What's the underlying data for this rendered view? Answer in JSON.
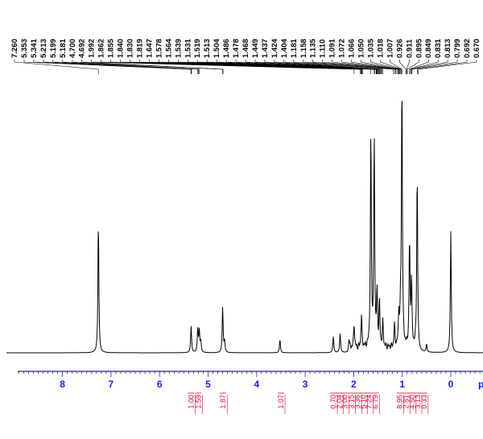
{
  "chart_data": {
    "type": "line",
    "title": "",
    "xlabel": "p",
    "ylabel": "",
    "xlim": [
      8.9,
      -0.6
    ],
    "x_reversed": true,
    "x_ticks": [
      "8",
      "7",
      "6",
      "5",
      "4",
      "3",
      "2",
      "1",
      "0"
    ],
    "peak_labels": [
      {
        "label": "7.260",
        "x": 7.26
      },
      {
        "label": "5.353",
        "x": 5.353
      },
      {
        "label": "5.341",
        "x": 5.341
      },
      {
        "label": "5.213",
        "x": 5.213
      },
      {
        "label": "5.199",
        "x": 5.199
      },
      {
        "label": "5.181",
        "x": 5.181
      },
      {
        "label": "4.700",
        "x": 4.7
      },
      {
        "label": "4.692",
        "x": 4.692
      },
      {
        "label": "1.992",
        "x": 1.992
      },
      {
        "label": "1.862",
        "x": 1.862
      },
      {
        "label": "1.855",
        "x": 1.855
      },
      {
        "label": "1.840",
        "x": 1.84
      },
      {
        "label": "1.830",
        "x": 1.83
      },
      {
        "label": "1.819",
        "x": 1.819
      },
      {
        "label": "1.647",
        "x": 1.647
      },
      {
        "label": "1.578",
        "x": 1.578
      },
      {
        "label": "1.564",
        "x": 1.564
      },
      {
        "label": "1.539",
        "x": 1.539
      },
      {
        "label": "1.531",
        "x": 1.531
      },
      {
        "label": "1.519",
        "x": 1.519
      },
      {
        "label": "1.513",
        "x": 1.513
      },
      {
        "label": "1.504",
        "x": 1.504
      },
      {
        "label": "1.486",
        "x": 1.486
      },
      {
        "label": "1.478",
        "x": 1.478
      },
      {
        "label": "1.468",
        "x": 1.468
      },
      {
        "label": "1.449",
        "x": 1.449
      },
      {
        "label": "1.437",
        "x": 1.437
      },
      {
        "label": "1.424",
        "x": 1.424
      },
      {
        "label": "1.404",
        "x": 1.404
      },
      {
        "label": "1.181",
        "x": 1.181
      },
      {
        "label": "1.158",
        "x": 1.158
      },
      {
        "label": "1.135",
        "x": 1.135
      },
      {
        "label": "1.110",
        "x": 1.11
      },
      {
        "label": "1.091",
        "x": 1.091
      },
      {
        "label": "1.072",
        "x": 1.072
      },
      {
        "label": "1.066",
        "x": 1.066
      },
      {
        "label": "1.050",
        "x": 1.05
      },
      {
        "label": "1.035",
        "x": 1.035
      },
      {
        "label": "1.018",
        "x": 1.018
      },
      {
        "label": "1.007",
        "x": 1.007
      },
      {
        "label": "0.926",
        "x": 0.926
      },
      {
        "label": "0.911",
        "x": 0.911
      },
      {
        "label": "0.895",
        "x": 0.895
      },
      {
        "label": "0.849",
        "x": 0.849
      },
      {
        "label": "0.831",
        "x": 0.831
      },
      {
        "label": "0.813",
        "x": 0.813
      },
      {
        "label": "0.799",
        "x": 0.799
      },
      {
        "label": "0.692",
        "x": 0.692
      },
      {
        "label": "0.670",
        "x": 0.67
      }
    ],
    "integrals": [
      {
        "label": "1.00",
        "x": 5.35
      },
      {
        "label": "1.59",
        "x": 5.2
      },
      {
        "label": "1.87",
        "x": 4.69
      },
      {
        "label": "1.07",
        "x": 3.5
      },
      {
        "label": "0.70",
        "x": 2.42
      },
      {
        "label": "2.04",
        "x": 2.3
      },
      {
        "label": "3.00",
        "x": 2.18
      },
      {
        "label": "3.15",
        "x": 2.05
      },
      {
        "label": "3.36",
        "x": 1.92
      },
      {
        "label": "5.10",
        "x": 1.8
      },
      {
        "label": "7.24",
        "x": 1.68
      },
      {
        "label": "6.79",
        "x": 1.55
      },
      {
        "label": "8.95",
        "x": 1.05
      },
      {
        "label": "2.81",
        "x": 0.92
      },
      {
        "label": "4.50",
        "x": 0.8
      },
      {
        "label": "3.13",
        "x": 0.68
      },
      {
        "label": "0.33",
        "x": 0.55
      }
    ],
    "series": [
      {
        "color": "#000000",
        "peaks": [
          {
            "x": 7.26,
            "h": 0.5
          },
          {
            "x": 5.35,
            "h": 0.1
          },
          {
            "x": 5.213,
            "h": 0.09
          },
          {
            "x": 5.181,
            "h": 0.08
          },
          {
            "x": 5.15,
            "h": 0.04
          },
          {
            "x": 4.7,
            "h": 0.17
          },
          {
            "x": 4.66,
            "h": 0.04
          },
          {
            "x": 3.52,
            "h": 0.05
          },
          {
            "x": 2.42,
            "h": 0.06
          },
          {
            "x": 2.28,
            "h": 0.07
          },
          {
            "x": 2.1,
            "h": 0.04
          },
          {
            "x": 1.992,
            "h": 0.09
          },
          {
            "x": 1.84,
            "h": 0.12
          },
          {
            "x": 1.647,
            "h": 0.8
          },
          {
            "x": 1.578,
            "h": 0.78
          },
          {
            "x": 1.52,
            "h": 0.2
          },
          {
            "x": 1.47,
            "h": 0.16
          },
          {
            "x": 1.4,
            "h": 0.09
          },
          {
            "x": 1.16,
            "h": 0.08
          },
          {
            "x": 1.07,
            "h": 0.12
          },
          {
            "x": 1.035,
            "h": 0.12
          },
          {
            "x": 1.007,
            "h": 1.0
          },
          {
            "x": 0.85,
            "h": 0.4
          },
          {
            "x": 0.81,
            "h": 0.25
          },
          {
            "x": 0.692,
            "h": 0.68
          },
          {
            "x": 0.5,
            "h": 0.03
          },
          {
            "x": 0.0,
            "h": 0.45
          }
        ]
      }
    ],
    "colors": {
      "spectrum": "#000000",
      "axis": "#1a1aff",
      "integral": "#e0002a"
    }
  }
}
